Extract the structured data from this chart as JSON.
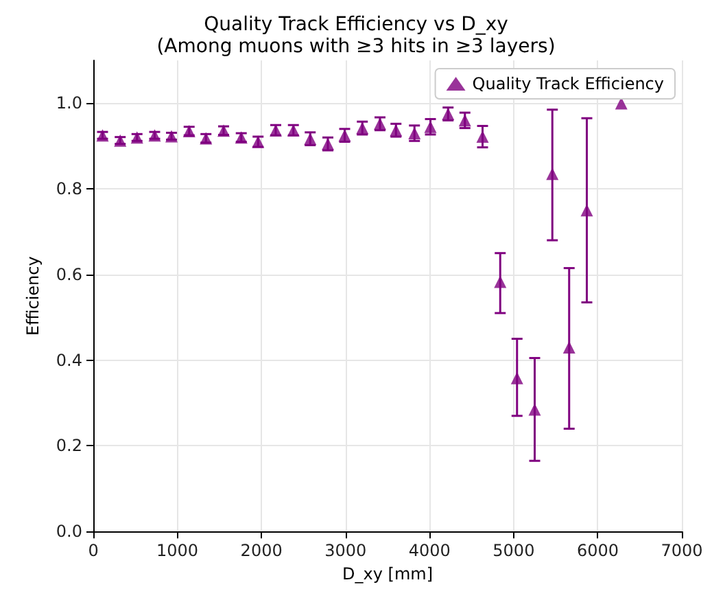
{
  "chart_data": {
    "type": "scatter",
    "title": "Quality Track Efficiency vs D_xy",
    "subtitle": "(Among muons with ≥3 hits in ≥3 layers)",
    "xlabel": "D_xy [mm]",
    "ylabel": "Efficiency",
    "x": [
      110,
      320,
      520,
      730,
      930,
      1140,
      1340,
      1550,
      1760,
      1960,
      2170,
      2380,
      2580,
      2790,
      2990,
      3200,
      3410,
      3600,
      3820,
      4010,
      4220,
      4420,
      4630,
      4840,
      5040,
      5250,
      5460,
      5660,
      5870,
      6280
    ],
    "series": [
      {
        "name": "Quality Track Efficiency",
        "color": "#800080",
        "values": [
          0.925,
          0.913,
          0.92,
          0.925,
          0.923,
          0.935,
          0.918,
          0.936,
          0.92,
          0.91,
          0.937,
          0.937,
          0.917,
          0.905,
          0.925,
          0.942,
          0.952,
          0.937,
          0.93,
          0.945,
          0.975,
          0.96,
          0.922,
          0.583,
          0.358,
          0.285,
          0.835,
          0.43,
          0.75,
          1.0
        ],
        "errors": [
          0.008,
          0.008,
          0.008,
          0.008,
          0.008,
          0.01,
          0.01,
          0.01,
          0.01,
          0.012,
          0.012,
          0.012,
          0.015,
          0.015,
          0.015,
          0.015,
          0.015,
          0.015,
          0.018,
          0.018,
          0.015,
          0.018,
          0.025,
          [
            0.51,
            0.65
          ],
          [
            0.27,
            0.45
          ],
          [
            0.165,
            0.405
          ],
          [
            0.68,
            0.985
          ],
          [
            0.24,
            0.615
          ],
          [
            0.535,
            0.965
          ],
          null
        ]
      }
    ],
    "xlim": [
      0,
      7000
    ],
    "xticks": [
      0,
      1000,
      2000,
      3000,
      4000,
      5000,
      6000,
      7000
    ],
    "ylim": [
      0,
      1.1
    ],
    "yticks": [
      {
        "value": 0,
        "label": "0.0"
      },
      0.2,
      0.4,
      0.6,
      0.8,
      {
        "value": 1,
        "label": "1.0"
      }
    ],
    "grid": true,
    "legend": "top right",
    "marker": "triangle"
  }
}
